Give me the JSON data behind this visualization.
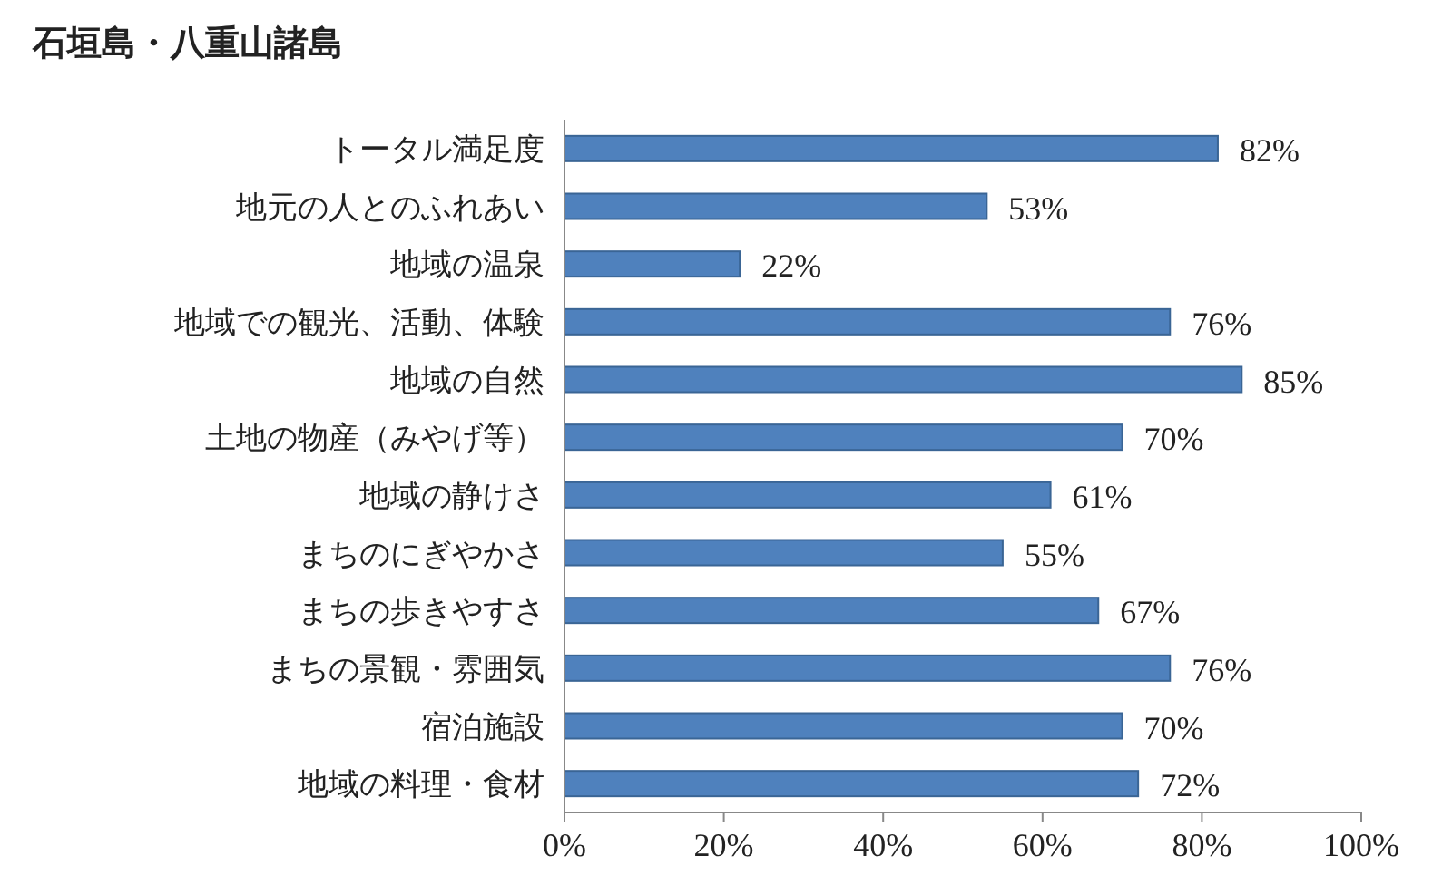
{
  "chart_data": {
    "type": "bar",
    "orientation": "horizontal",
    "title": "石垣島・八重山諸島",
    "categories": [
      "トータル満足度",
      "地元の人とのふれあい",
      "地域の温泉",
      "地域での観光、活動、体験",
      "地域の自然",
      "土地の物産（みやげ等）",
      "地域の静けさ",
      "まちのにぎやかさ",
      "まちの歩きやすさ",
      "まちの景観・雰囲気",
      "宿泊施設",
      "地域の料理・食材"
    ],
    "values": [
      82,
      53,
      22,
      76,
      85,
      70,
      61,
      55,
      67,
      76,
      70,
      72
    ],
    "value_labels": [
      "82%",
      "53%",
      "22%",
      "76%",
      "85%",
      "70%",
      "61%",
      "55%",
      "67%",
      "76%",
      "70%",
      "72%"
    ],
    "color": "#4f81bd",
    "xlim": [
      0,
      100
    ],
    "xticks": [
      {
        "value": 0,
        "label": "0%"
      },
      {
        "value": 20,
        "label": "20%"
      },
      {
        "value": 40,
        "label": "40%"
      },
      {
        "value": 60,
        "label": "60%"
      },
      {
        "value": 80,
        "label": "80%"
      },
      {
        "value": 100,
        "label": "100%"
      }
    ]
  }
}
